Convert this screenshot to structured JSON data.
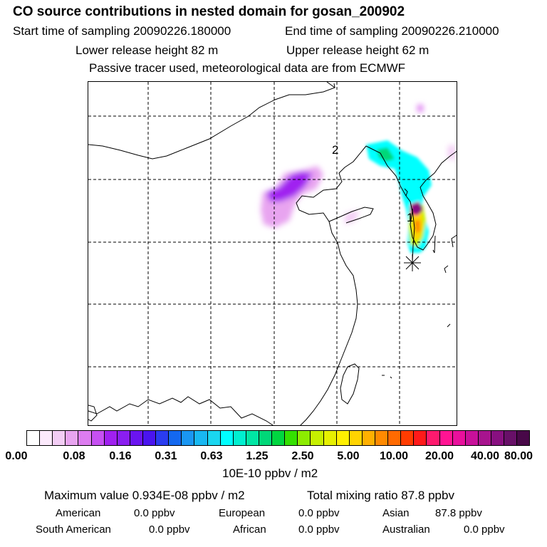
{
  "header": {
    "title": "CO  source contributions in nested domain for gosan_200902",
    "start_label": "Start time of sampling 20090226.180000",
    "end_label": "End time of sampling 20090226.210000",
    "lower_label": "Lower release height   82 m",
    "upper_label": "Upper release height   62 m",
    "tracer_label": "Passive tracer used, meteorological data are from ECMWF"
  },
  "map": {
    "marker_1": "1",
    "marker_2": "2"
  },
  "colorbar": {
    "ticks": [
      "0.00",
      "0.08",
      "0.16",
      "0.31",
      "0.63",
      "1.25",
      "2.50",
      "5.00",
      "10.00",
      "20.00",
      "40.00",
      "80.00"
    ],
    "units": "10E-10 ppbv / m2",
    "colors": [
      "#ffffff",
      "#fbe9fb",
      "#f3cdf5",
      "#e8a4f0",
      "#dd7cf0",
      "#c650f2",
      "#a020f0",
      "#8a1ef0",
      "#6a14f0",
      "#4a14ef",
      "#2a3cf0",
      "#1468ef",
      "#1a96f2",
      "#18b8f2",
      "#1ad6f0",
      "#00ffff",
      "#00f0d0",
      "#00e6a4",
      "#00d878",
      "#00d640",
      "#34e000",
      "#8cec00",
      "#c6f000",
      "#e6f000",
      "#fff000",
      "#ffd400",
      "#ffb000",
      "#ff8a00",
      "#ff6a00",
      "#ff3c00",
      "#ff1a1a",
      "#ff1a6e",
      "#ff1493",
      "#e8109c",
      "#c8109a",
      "#a8148e",
      "#881080",
      "#681068",
      "#480848"
    ]
  },
  "footer": {
    "maximum": "Maximum value  0.934E-08 ppbv / m2",
    "total": "Total mixing ratio       87.8 ppbv",
    "american_label": "American",
    "american_value": "0.0 ppbv",
    "european_label": "European",
    "european_value": "0.0 ppbv",
    "asian_label": "Asian",
    "asian_value": "87.8 ppbv",
    "south_american_label": "South American",
    "south_american_value": "0.0 ppbv",
    "african_label": "African",
    "african_value": "0.0 ppbv",
    "australian_label": "Australian",
    "australian_value": "0.0 ppbv"
  }
}
